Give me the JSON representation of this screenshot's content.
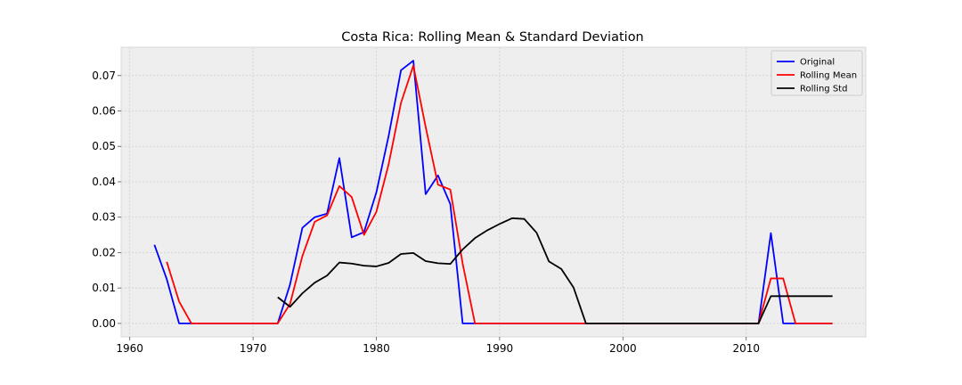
{
  "chart_data": {
    "type": "line",
    "title": "Costa Rica: Rolling Mean & Standard Deviation",
    "xlabel": "",
    "ylabel": "",
    "xlim": [
      1959.3,
      2019.7
    ],
    "ylim": [
      -0.0038,
      0.078
    ],
    "x_ticks": [
      1960,
      1970,
      1980,
      1990,
      2000,
      2010
    ],
    "y_ticks": [
      0.0,
      0.01,
      0.02,
      0.03,
      0.04,
      0.05,
      0.06,
      0.07
    ],
    "y_tick_labels": [
      "0.00",
      "0.01",
      "0.02",
      "0.03",
      "0.04",
      "0.05",
      "0.06",
      "0.07"
    ],
    "x_tick_labels": [
      "1960",
      "1970",
      "1980",
      "1990",
      "2000",
      "2010"
    ],
    "grid": true,
    "legend_position": "top-right",
    "colors": {
      "background": "#eeeeee",
      "grid": "#cfcfcf",
      "axis_text": "#000000"
    },
    "series": [
      {
        "name": "Original",
        "color": "#0000ff",
        "points": [
          [
            1962,
            0.0222
          ],
          [
            1963,
            0.0125
          ],
          [
            1964,
            0.0
          ],
          [
            1965,
            0.0
          ],
          [
            1966,
            0.0
          ],
          [
            1967,
            0.0
          ],
          [
            1968,
            0.0
          ],
          [
            1969,
            0.0
          ],
          [
            1970,
            0.0
          ],
          [
            1971,
            0.0
          ],
          [
            1972,
            0.0
          ],
          [
            1973,
            0.011
          ],
          [
            1974,
            0.027
          ],
          [
            1975,
            0.03
          ],
          [
            1976,
            0.031
          ],
          [
            1977,
            0.0467
          ],
          [
            1978,
            0.0243
          ],
          [
            1979,
            0.0258
          ],
          [
            1980,
            0.037
          ],
          [
            1981,
            0.053
          ],
          [
            1982,
            0.0715
          ],
          [
            1983,
            0.0742
          ],
          [
            1984,
            0.0365
          ],
          [
            1985,
            0.0418
          ],
          [
            1986,
            0.0337
          ],
          [
            1987,
            0.0
          ],
          [
            1988,
            0.0
          ],
          [
            1989,
            0.0
          ],
          [
            1990,
            0.0
          ],
          [
            1991,
            0.0
          ],
          [
            1992,
            0.0
          ],
          [
            1993,
            0.0
          ],
          [
            1994,
            0.0
          ],
          [
            1995,
            0.0
          ],
          [
            1996,
            0.0
          ],
          [
            1997,
            0.0
          ],
          [
            1998,
            0.0
          ],
          [
            1999,
            0.0
          ],
          [
            2000,
            0.0
          ],
          [
            2001,
            0.0
          ],
          [
            2002,
            0.0
          ],
          [
            2003,
            0.0
          ],
          [
            2004,
            0.0
          ],
          [
            2005,
            0.0
          ],
          [
            2006,
            0.0
          ],
          [
            2007,
            0.0
          ],
          [
            2008,
            0.0
          ],
          [
            2009,
            0.0
          ],
          [
            2010,
            0.0
          ],
          [
            2011,
            0.0
          ],
          [
            2012,
            0.0255
          ],
          [
            2013,
            0.0
          ],
          [
            2014,
            0.0
          ],
          [
            2015,
            0.0
          ],
          [
            2016,
            0.0
          ],
          [
            2017,
            0.0
          ]
        ]
      },
      {
        "name": "Rolling Mean",
        "color": "#ff0000",
        "points": [
          [
            1963,
            0.0174
          ],
          [
            1964,
            0.0062
          ],
          [
            1965,
            0.0
          ],
          [
            1966,
            0.0
          ],
          [
            1967,
            0.0
          ],
          [
            1968,
            0.0
          ],
          [
            1969,
            0.0
          ],
          [
            1970,
            0.0
          ],
          [
            1971,
            0.0
          ],
          [
            1972,
            0.0
          ],
          [
            1973,
            0.0055
          ],
          [
            1974,
            0.019
          ],
          [
            1975,
            0.0287
          ],
          [
            1976,
            0.0305
          ],
          [
            1977,
            0.0388
          ],
          [
            1978,
            0.0357
          ],
          [
            1979,
            0.025
          ],
          [
            1980,
            0.0315
          ],
          [
            1981,
            0.045
          ],
          [
            1982,
            0.0623
          ],
          [
            1983,
            0.0728
          ],
          [
            1984,
            0.0555
          ],
          [
            1985,
            0.0392
          ],
          [
            1986,
            0.0378
          ],
          [
            1987,
            0.0169
          ],
          [
            1988,
            0.0
          ],
          [
            1989,
            0.0
          ],
          [
            1990,
            0.0
          ],
          [
            1991,
            0.0
          ],
          [
            1992,
            0.0
          ],
          [
            1993,
            0.0
          ],
          [
            1994,
            0.0
          ],
          [
            1995,
            0.0
          ],
          [
            1996,
            0.0
          ],
          [
            1997,
            0.0
          ],
          [
            1998,
            0.0
          ],
          [
            1999,
            0.0
          ],
          [
            2000,
            0.0
          ],
          [
            2001,
            0.0
          ],
          [
            2002,
            0.0
          ],
          [
            2003,
            0.0
          ],
          [
            2004,
            0.0
          ],
          [
            2005,
            0.0
          ],
          [
            2006,
            0.0
          ],
          [
            2007,
            0.0
          ],
          [
            2008,
            0.0
          ],
          [
            2009,
            0.0
          ],
          [
            2010,
            0.0
          ],
          [
            2011,
            0.0
          ],
          [
            2012,
            0.0127
          ],
          [
            2013,
            0.0127
          ],
          [
            2014,
            0.0
          ],
          [
            2015,
            0.0
          ],
          [
            2016,
            0.0
          ],
          [
            2017,
            0.0
          ]
        ]
      },
      {
        "name": "Rolling Std",
        "color": "#000000",
        "points": [
          [
            1972,
            0.0074
          ],
          [
            1973,
            0.0047
          ],
          [
            1974,
            0.0085
          ],
          [
            1975,
            0.0115
          ],
          [
            1976,
            0.0135
          ],
          [
            1977,
            0.0172
          ],
          [
            1978,
            0.0169
          ],
          [
            1979,
            0.0163
          ],
          [
            1980,
            0.0161
          ],
          [
            1981,
            0.0171
          ],
          [
            1982,
            0.0196
          ],
          [
            1983,
            0.0199
          ],
          [
            1984,
            0.0176
          ],
          [
            1985,
            0.017
          ],
          [
            1986,
            0.0168
          ],
          [
            1987,
            0.0209
          ],
          [
            1988,
            0.0241
          ],
          [
            1989,
            0.0263
          ],
          [
            1990,
            0.0281
          ],
          [
            1991,
            0.0297
          ],
          [
            1992,
            0.0295
          ],
          [
            1993,
            0.0256
          ],
          [
            1994,
            0.0175
          ],
          [
            1995,
            0.0154
          ],
          [
            1996,
            0.0101
          ],
          [
            1997,
            0.0
          ],
          [
            1998,
            0.0
          ],
          [
            1999,
            0.0
          ],
          [
            2000,
            0.0
          ],
          [
            2001,
            0.0
          ],
          [
            2002,
            0.0
          ],
          [
            2003,
            0.0
          ],
          [
            2004,
            0.0
          ],
          [
            2005,
            0.0
          ],
          [
            2006,
            0.0
          ],
          [
            2007,
            0.0
          ],
          [
            2008,
            0.0
          ],
          [
            2009,
            0.0
          ],
          [
            2010,
            0.0
          ],
          [
            2011,
            0.0
          ],
          [
            2012,
            0.0077
          ],
          [
            2013,
            0.0077
          ],
          [
            2014,
            0.0077
          ],
          [
            2015,
            0.0077
          ],
          [
            2016,
            0.0077
          ],
          [
            2017,
            0.0077
          ]
        ]
      }
    ]
  }
}
